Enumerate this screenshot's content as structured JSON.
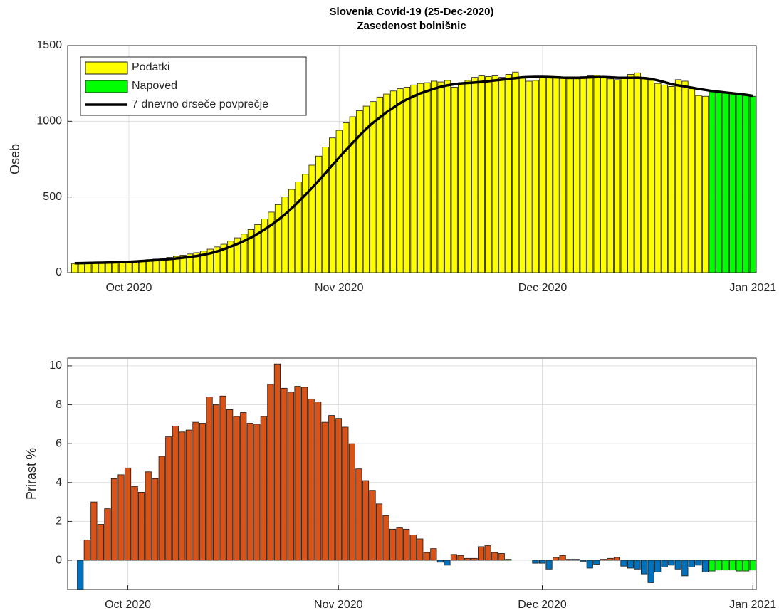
{
  "chart_data": [
    {
      "type": "bar",
      "title": "Slovenia Covid-19 (25-Dec-2020)",
      "subtitle": "Zasedenost bolnišnic",
      "ylabel": "Oseb",
      "legend": "upper left",
      "grid": true,
      "ylim": [
        0,
        1500
      ],
      "yticks": [
        0,
        500,
        1000,
        1500
      ],
      "categories": [
        null,
        null,
        null,
        null,
        null,
        null,
        null,
        null,
        "Oct 2020",
        null,
        null,
        null,
        null,
        null,
        null,
        null,
        null,
        null,
        null,
        null,
        null,
        null,
        null,
        null,
        null,
        null,
        null,
        null,
        null,
        null,
        null,
        null,
        null,
        null,
        null,
        null,
        null,
        null,
        null,
        "Nov 2020",
        null,
        null,
        null,
        null,
        null,
        null,
        null,
        null,
        null,
        null,
        null,
        null,
        null,
        null,
        null,
        null,
        null,
        null,
        null,
        null,
        null,
        null,
        null,
        null,
        null,
        null,
        null,
        null,
        null,
        "Dec 2020",
        null,
        null,
        null,
        null,
        null,
        null,
        null,
        null,
        null,
        null,
        null,
        null,
        null,
        null,
        null,
        null,
        null,
        null,
        null,
        null,
        null,
        null,
        null,
        null,
        null,
        null,
        null,
        null,
        null,
        null,
        "Jan 2021"
      ],
      "series": [
        {
          "name": "Podatki",
          "color": "#ffff00",
          "values": [
            60,
            58,
            64,
            63,
            65,
            67,
            68,
            71,
            75,
            78,
            82,
            86,
            90,
            95,
            101,
            108,
            115,
            123,
            132,
            142,
            155,
            170,
            188,
            208,
            230,
            255,
            285,
            318,
            355,
            400,
            450,
            500,
            550,
            600,
            650,
            710,
            770,
            830,
            890,
            940,
            990,
            1030,
            1070,
            1100,
            1130,
            1160,
            1180,
            1200,
            1215,
            1225,
            1240,
            1250,
            1255,
            1265,
            1260,
            1270,
            1225,
            1255,
            1270,
            1290,
            1300,
            1295,
            1300,
            1290,
            1310,
            1325,
            1285,
            1265,
            1270,
            1290,
            1285,
            1290,
            1285,
            1280,
            1280,
            1295,
            1300,
            1305,
            1290,
            1280,
            1275,
            1290,
            1310,
            1320,
            1290,
            1270,
            1250,
            1240,
            1230,
            1275,
            1265,
            1215,
            1170,
            1165,
            null,
            null,
            null,
            null,
            null,
            null,
            null
          ]
        },
        {
          "name": "Napoved",
          "color": "#00ff00",
          "values": [
            null,
            null,
            null,
            null,
            null,
            null,
            null,
            null,
            null,
            null,
            null,
            null,
            null,
            null,
            null,
            null,
            null,
            null,
            null,
            null,
            null,
            null,
            null,
            null,
            null,
            null,
            null,
            null,
            null,
            null,
            null,
            null,
            null,
            null,
            null,
            null,
            null,
            null,
            null,
            null,
            null,
            null,
            null,
            null,
            null,
            null,
            null,
            null,
            null,
            null,
            null,
            null,
            null,
            null,
            null,
            null,
            null,
            null,
            null,
            null,
            null,
            null,
            null,
            null,
            null,
            null,
            null,
            null,
            null,
            null,
            null,
            null,
            null,
            null,
            null,
            null,
            null,
            null,
            null,
            null,
            null,
            null,
            null,
            null,
            null,
            null,
            null,
            null,
            null,
            null,
            null,
            null,
            null,
            null,
            1195,
            1190,
            1185,
            1180,
            1175,
            1170,
            1165
          ]
        },
        {
          "name": "7 dnevno drseče povprečje",
          "color": "#000000",
          "type": "line",
          "values": [
            62,
            63,
            64,
            65,
            66,
            67,
            68,
            70,
            72,
            74,
            77,
            80,
            83,
            86,
            90,
            94,
            99,
            104,
            110,
            118,
            128,
            140,
            155,
            172,
            190,
            210,
            232,
            257,
            285,
            315,
            348,
            385,
            425,
            468,
            513,
            560,
            608,
            658,
            710,
            760,
            810,
            858,
            905,
            950,
            990,
            1025,
            1060,
            1090,
            1120,
            1145,
            1165,
            1185,
            1200,
            1215,
            1228,
            1238,
            1245,
            1250,
            1253,
            1256,
            1260,
            1265,
            1270,
            1275,
            1280,
            1285,
            1290,
            1292,
            1293,
            1293,
            1292,
            1290,
            1288,
            1287,
            1287,
            1288,
            1290,
            1292,
            1292,
            1290,
            1288,
            1287,
            1287,
            1288,
            1285,
            1280,
            1270,
            1258,
            1245,
            1237,
            1230,
            1222,
            1214,
            1207,
            1200,
            1195,
            1190,
            1185,
            1180,
            1175,
            1168
          ]
        }
      ]
    },
    {
      "type": "bar",
      "ylabel": "Prirast %",
      "grid": true,
      "ylim": [
        -1.5,
        10.4
      ],
      "yticks": [
        0,
        2,
        4,
        6,
        8,
        10
      ],
      "categories": [
        null,
        null,
        null,
        null,
        null,
        null,
        null,
        "Oct 2020",
        null,
        null,
        null,
        null,
        null,
        null,
        null,
        null,
        null,
        null,
        null,
        null,
        null,
        null,
        null,
        null,
        null,
        null,
        null,
        null,
        null,
        null,
        null,
        null,
        null,
        null,
        null,
        null,
        null,
        null,
        "Nov 2020",
        null,
        null,
        null,
        null,
        null,
        null,
        null,
        null,
        null,
        null,
        null,
        null,
        null,
        null,
        null,
        null,
        null,
        null,
        null,
        null,
        null,
        null,
        null,
        null,
        null,
        null,
        null,
        null,
        null,
        "Dec 2020",
        null,
        null,
        null,
        null,
        null,
        null,
        null,
        null,
        null,
        null,
        null,
        null,
        null,
        null,
        null,
        null,
        null,
        null,
        null,
        null,
        null,
        null,
        null,
        null,
        null,
        null,
        null,
        null,
        null,
        null,
        "Jan 2021"
      ],
      "series": [
        {
          "colors": {
            "positive": "#d95319",
            "negative": "#0072bd"
          },
          "values": [
            -1.5,
            1.05,
            3,
            1.85,
            2.65,
            4.2,
            4.4,
            4.75,
            3.8,
            3.5,
            4.55,
            4.2,
            5.35,
            6.35,
            6.9,
            6.6,
            6.7,
            7.1,
            7.05,
            8.4,
            8,
            8.45,
            7.75,
            7.4,
            7.6,
            7.05,
            7,
            7.4,
            9.05,
            10.1,
            8.85,
            8.65,
            8.95,
            8.9,
            8.3,
            8.15,
            7.1,
            7.45,
            7.3,
            6.85,
            6,
            4.7,
            4.1,
            3.6,
            2.9,
            2.3,
            1.6,
            1.7,
            1.6,
            1.3,
            1.1,
            0.4,
            0.6,
            -0.1,
            -0.25,
            0.3,
            0.25,
            0.1,
            0.1,
            0.7,
            0.75,
            0.4,
            0.35,
            0.05,
            0,
            0,
            0,
            -0.15,
            -0.15,
            -0.45,
            0.15,
            0.25,
            0.05,
            0.05,
            -0.05,
            -0.4,
            -0.2,
            0.05,
            0.1,
            0.15,
            -0.3,
            -0.4,
            -0.45,
            -0.7,
            -1.15,
            -0.6,
            -0.35,
            -0.25,
            -0.45,
            -0.8,
            -0.35,
            -0.25,
            -0.6,
            null,
            null,
            null,
            null,
            null,
            null,
            null
          ]
        },
        {
          "color": "#00ff00",
          "values": [
            null,
            null,
            null,
            null,
            null,
            null,
            null,
            null,
            null,
            null,
            null,
            null,
            null,
            null,
            null,
            null,
            null,
            null,
            null,
            null,
            null,
            null,
            null,
            null,
            null,
            null,
            null,
            null,
            null,
            null,
            null,
            null,
            null,
            null,
            null,
            null,
            null,
            null,
            null,
            null,
            null,
            null,
            null,
            null,
            null,
            null,
            null,
            null,
            null,
            null,
            null,
            null,
            null,
            null,
            null,
            null,
            null,
            null,
            null,
            null,
            null,
            null,
            null,
            null,
            null,
            null,
            null,
            null,
            null,
            null,
            null,
            null,
            null,
            null,
            null,
            null,
            null,
            null,
            null,
            null,
            null,
            null,
            null,
            null,
            null,
            null,
            null,
            null,
            null,
            null,
            null,
            null,
            null,
            -0.55,
            -0.5,
            -0.5,
            -0.5,
            -0.55,
            -0.55,
            -0.5
          ]
        }
      ]
    }
  ]
}
